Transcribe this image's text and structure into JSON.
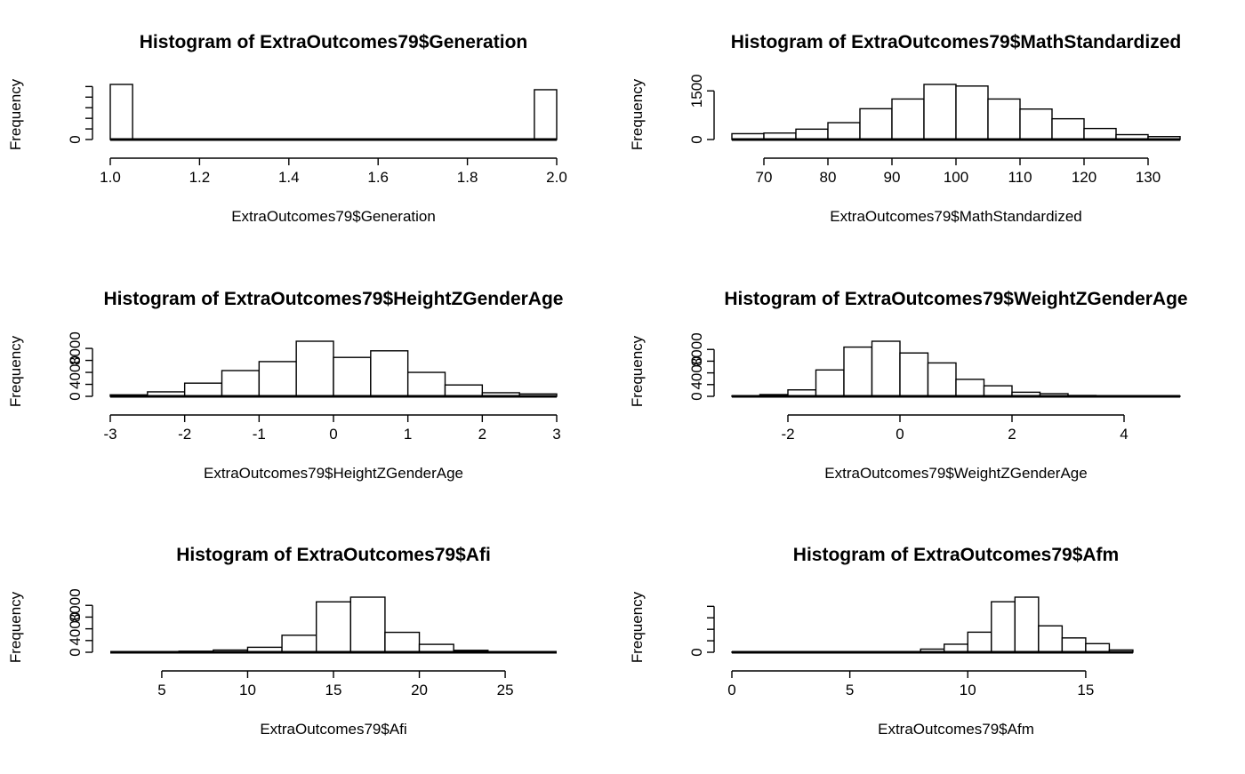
{
  "chart_data": [
    {
      "type": "bar",
      "title": "Histogram of ExtraOutcomes79$Generation",
      "xlabel": "ExtraOutcomes79$Generation",
      "ylabel": "Frequency",
      "xlim": [
        1.0,
        2.0
      ],
      "ylim": [
        0,
        10500
      ],
      "x_ticks": [
        1.0,
        1.2,
        1.4,
        1.6,
        1.8,
        2.0
      ],
      "x_tick_labels": [
        "1.0",
        "1.2",
        "1.4",
        "1.6",
        "1.8",
        "2.0"
      ],
      "y_ticks": [
        0,
        2000,
        4000,
        6000,
        8000,
        10000
      ],
      "y_tick_labels": [
        "0",
        "",
        "",
        "",
        "",
        ""
      ],
      "bins": [
        1.0,
        1.05,
        1.1,
        1.15,
        1.2,
        1.25,
        1.3,
        1.35,
        1.4,
        1.45,
        1.5,
        1.55,
        1.6,
        1.65,
        1.7,
        1.75,
        1.8,
        1.85,
        1.9,
        1.95,
        2.0
      ],
      "counts": [
        10400,
        0,
        0,
        0,
        0,
        0,
        0,
        0,
        0,
        0,
        0,
        0,
        0,
        0,
        0,
        0,
        0,
        0,
        0,
        9400
      ],
      "grid": false
    },
    {
      "type": "bar",
      "title": "Histogram of ExtraOutcomes79$MathStandardized",
      "xlabel": "ExtraOutcomes79$MathStandardized",
      "ylabel": "Frequency",
      "xlim": [
        65,
        135
      ],
      "ylim": [
        0,
        1750
      ],
      "x_ticks": [
        70,
        80,
        90,
        100,
        110,
        120,
        130
      ],
      "x_tick_labels": [
        "70",
        "80",
        "90",
        "100",
        "110",
        "120",
        "130"
      ],
      "y_ticks": [
        0,
        1500
      ],
      "y_tick_labels": [
        "0",
        "1500"
      ],
      "bins": [
        65,
        70,
        75,
        80,
        85,
        90,
        95,
        100,
        105,
        110,
        115,
        120,
        125,
        130,
        135
      ],
      "counts": [
        180,
        200,
        320,
        520,
        950,
        1250,
        1700,
        1650,
        1250,
        940,
        640,
        340,
        150,
        90
      ],
      "grid": false
    },
    {
      "type": "bar",
      "title": "Histogram of ExtraOutcomes79$HeightZGenderAge",
      "xlabel": "ExtraOutcomes79$HeightZGenderAge",
      "ylabel": "Frequency",
      "xlim": [
        -3,
        3
      ],
      "ylim": [
        0,
        9000
      ],
      "x_ticks": [
        -3,
        -2,
        -1,
        0,
        1,
        2,
        3
      ],
      "x_tick_labels": [
        "-3",
        "-2",
        "-1",
        "0",
        "1",
        "2",
        "3"
      ],
      "y_ticks": [
        0,
        2000,
        4000,
        6000,
        8000
      ],
      "y_tick_labels": [
        "0",
        "",
        "4000",
        "",
        "8000"
      ],
      "bins": [
        -3,
        -2.5,
        -2,
        -1.5,
        -1,
        -0.5,
        0,
        0.5,
        1,
        1.5,
        2,
        2.5,
        3
      ],
      "counts": [
        250,
        750,
        2200,
        4300,
        5800,
        9200,
        6500,
        7600,
        4000,
        1900,
        600,
        400
      ],
      "grid": false
    },
    {
      "type": "bar",
      "title": "Histogram of ExtraOutcomes79$WeightZGenderAge",
      "xlabel": "ExtraOutcomes79$WeightZGenderAge",
      "ylabel": "Frequency",
      "xlim": [
        -3,
        5
      ],
      "ylim": [
        0,
        9000
      ],
      "x_ticks": [
        -2,
        0,
        2,
        4
      ],
      "x_tick_labels": [
        "-2",
        "0",
        "2",
        "4"
      ],
      "y_ticks": [
        0,
        2000,
        4000,
        6000,
        8000
      ],
      "y_tick_labels": [
        "0",
        "",
        "4000",
        "",
        "8000"
      ],
      "bins": [
        -3,
        -2.5,
        -2,
        -1.5,
        -1,
        -0.5,
        0,
        0.5,
        1,
        1.5,
        2,
        2.5,
        3,
        3.5,
        4,
        4.5,
        5
      ],
      "counts": [
        80,
        300,
        1100,
        4500,
        8400,
        9400,
        7400,
        5700,
        2900,
        1800,
        700,
        450,
        150,
        80,
        30,
        20
      ],
      "grid": false
    },
    {
      "type": "bar",
      "title": "Histogram of ExtraOutcomes79$Afi",
      "xlabel": "ExtraOutcomes79$Afi",
      "ylabel": "Frequency",
      "xlim": [
        2,
        28
      ],
      "ylim": [
        0,
        9000
      ],
      "x_ticks": [
        5,
        10,
        15,
        20,
        25
      ],
      "x_tick_labels": [
        "5",
        "10",
        "15",
        "20",
        "25"
      ],
      "y_ticks": [
        0,
        2000,
        4000,
        6000,
        8000
      ],
      "y_tick_labels": [
        "0",
        "",
        "4000",
        "",
        "8000"
      ],
      "bins": [
        2,
        4,
        6,
        8,
        10,
        12,
        14,
        16,
        18,
        20,
        22,
        24,
        26,
        28
      ],
      "counts": [
        0,
        30,
        180,
        380,
        850,
        2900,
        8600,
        9400,
        3400,
        1350,
        330,
        60,
        0
      ],
      "grid": false
    },
    {
      "type": "bar",
      "title": "Histogram of ExtraOutcomes79$Afm",
      "xlabel": "ExtraOutcomes79$Afm",
      "ylabel": "Frequency",
      "xlim": [
        0,
        19
      ],
      "ylim": [
        0,
        9000
      ],
      "x_ticks": [
        0,
        5,
        10,
        15
      ],
      "x_tick_labels": [
        "0",
        "5",
        "10",
        "15"
      ],
      "y_ticks": [
        0,
        2000,
        4000,
        6000,
        8000
      ],
      "y_tick_labels": [
        "0",
        "",
        "",
        "",
        ""
      ],
      "bins": [
        0,
        1,
        2,
        3,
        4,
        5,
        6,
        7,
        8,
        9,
        10,
        11,
        12,
        13,
        14,
        15,
        16,
        17
      ],
      "counts": [
        40,
        20,
        20,
        20,
        20,
        20,
        30,
        60,
        550,
        1400,
        3500,
        8800,
        9600,
        4600,
        2500,
        1500,
        400
      ],
      "grid": false
    }
  ]
}
